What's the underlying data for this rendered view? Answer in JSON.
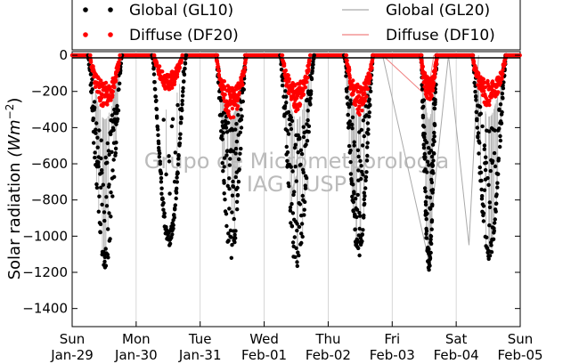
{
  "chart_data": {
    "type": "scatter",
    "ylabel": "Solar radiation (Wm^-2)",
    "ylabel_text": "Solar radiation ",
    "ylabel_unit": "(Wm",
    "ylabel_exp": "−2",
    "ylabel_close": ")",
    "ylim": [
      -1500,
      20
    ],
    "yticks": [
      0,
      -200,
      -400,
      -600,
      -800,
      -1000,
      -1200,
      -1400
    ],
    "xlim": [
      0,
      7
    ],
    "xticks": [
      {
        "pos": 0,
        "day": "Sun",
        "date": "Jan-29"
      },
      {
        "pos": 1,
        "day": "Mon",
        "date": "Jan-30"
      },
      {
        "pos": 2,
        "day": "Tue",
        "date": "Jan-31"
      },
      {
        "pos": 3,
        "day": "Wed",
        "date": "Feb-01"
      },
      {
        "pos": 4,
        "day": "Thu",
        "date": "Feb-02"
      },
      {
        "pos": 5,
        "day": "Fri",
        "date": "Feb-03"
      },
      {
        "pos": 6,
        "day": "Sat",
        "date": "Feb-04"
      },
      {
        "pos": 7,
        "day": "Sun",
        "date": "Feb-05"
      }
    ],
    "grid": "vertical",
    "legend": {
      "placement": "top",
      "entries": [
        {
          "label": "Global (GL10)",
          "style": "dots",
          "color": "#000000"
        },
        {
          "label": "Diffuse (DF20)",
          "style": "dots",
          "color": "#ff0000"
        },
        {
          "label": "Global (GL20)",
          "style": "line",
          "color": "#aaaaaa"
        },
        {
          "label": "Diffuse (DF10)",
          "style": "line",
          "color": "#f08080"
        }
      ]
    },
    "watermark": [
      "Grupo de Micrometeorologia",
      "IAG / USP"
    ],
    "series": [
      {
        "name": "Global (GL10)",
        "color": "#000000",
        "days": [
          {
            "start": 0.25,
            "end": 0.78,
            "peak": -1180,
            "cloudiness": 0.8
          },
          {
            "start": 1.25,
            "end": 1.78,
            "peak": -1050,
            "cloudiness": 0.1
          },
          {
            "start": 2.25,
            "end": 2.72,
            "peak": -1130,
            "cloudiness": 0.85
          },
          {
            "start": 3.25,
            "end": 3.78,
            "peak": -1180,
            "cloudiness": 0.75
          },
          {
            "start": 4.25,
            "end": 4.7,
            "peak": -1120,
            "cloudiness": 0.7
          },
          {
            "start": 5.45,
            "end": 5.7,
            "peak": -1180,
            "cloudiness": 0.6
          },
          {
            "start": 6.25,
            "end": 6.78,
            "peak": -1130,
            "cloudiness": 0.6
          }
        ]
      },
      {
        "name": "Diffuse (DF20)",
        "color": "#ff0000",
        "days": [
          {
            "start": 0.28,
            "end": 0.75,
            "peak": -270
          },
          {
            "start": 1.28,
            "end": 1.72,
            "peak": -180
          },
          {
            "start": 2.25,
            "end": 2.72,
            "peak": -320
          },
          {
            "start": 3.28,
            "end": 3.72,
            "peak": -290
          },
          {
            "start": 4.28,
            "end": 4.7,
            "peak": -300
          },
          {
            "start": 5.45,
            "end": 5.7,
            "peak": -230
          },
          {
            "start": 6.25,
            "end": 6.78,
            "peak": -260
          }
        ]
      },
      {
        "name": "Global (GL20)",
        "color": "#aaaaaa",
        "points": [
          [
            4.85,
            0
          ],
          [
            5.55,
            -1100
          ],
          [
            5.88,
            0
          ],
          [
            6.2,
            -1050
          ],
          [
            6.35,
            0
          ]
        ]
      },
      {
        "name": "Diffuse (DF10)",
        "color": "#f08080",
        "points": [
          [
            4.85,
            0
          ],
          [
            5.55,
            -230
          ],
          [
            5.65,
            0
          ]
        ]
      }
    ]
  }
}
